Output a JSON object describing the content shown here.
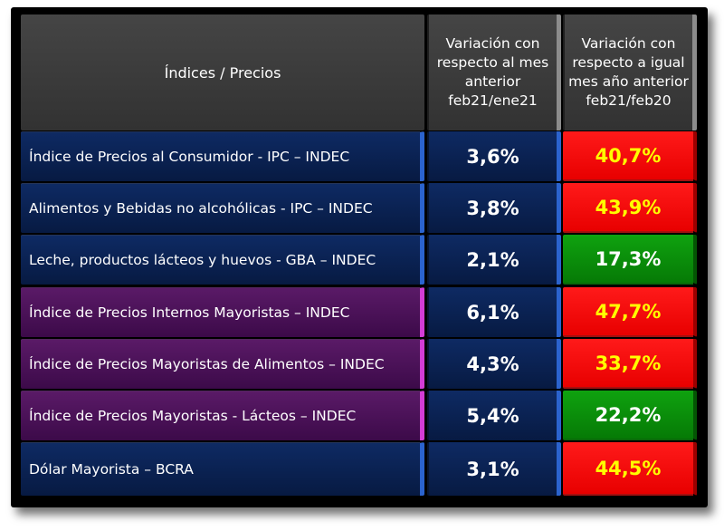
{
  "header": {
    "label": "Índices / Precios",
    "col_monthly": [
      "Variación con",
      "respecto al mes",
      "anterior",
      "feb21/ene21"
    ],
    "col_yearly": [
      "Variación con",
      "respecto a igual",
      "mes año anterior",
      "feb21/feb20"
    ]
  },
  "rows": [
    {
      "label": "Índice de Precios al Consumidor - IPC – INDEC",
      "monthly": "3,6%",
      "yearly": "40,7%",
      "group": "navy",
      "yearly_status": "red"
    },
    {
      "label": "Alimentos y Bebidas no alcohólicas - IPC – INDEC",
      "monthly": "3,8%",
      "yearly": "43,9%",
      "group": "navy",
      "yearly_status": "red"
    },
    {
      "label": "Leche, productos lácteos y huevos - GBA – INDEC",
      "monthly": "2,1%",
      "yearly": "17,3%",
      "group": "navy",
      "yearly_status": "green"
    },
    {
      "label": "Índice de Precios Internos Mayoristas – INDEC",
      "monthly": "6,1%",
      "yearly": "47,7%",
      "group": "purple",
      "yearly_status": "red"
    },
    {
      "label": "Índice de Precios Mayoristas de Alimentos – INDEC",
      "monthly": "4,3%",
      "yearly": "33,7%",
      "group": "purple",
      "yearly_status": "red"
    },
    {
      "label": "Índice de Precios Mayoristas - Lácteos – INDEC",
      "monthly": "5,4%",
      "yearly": "22,2%",
      "group": "purple",
      "yearly_status": "green"
    },
    {
      "label": "Dólar Mayorista – BCRA",
      "monthly": "3,1%",
      "yearly": "44,5%",
      "group": "navy",
      "yearly_status": "red"
    }
  ],
  "colors": {
    "navy": "#0e2a63",
    "purple": "#5a1a67",
    "red": "#ff0000",
    "green": "#0a8f0a",
    "highlight_text": "#ffff00"
  }
}
